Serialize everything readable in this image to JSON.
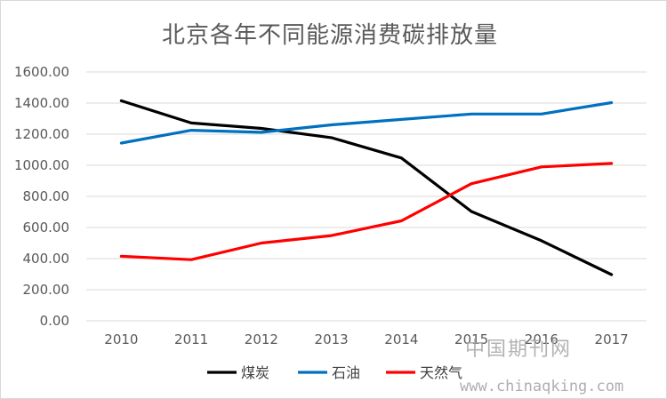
{
  "chart_data": {
    "type": "line",
    "title": "北京各年不同能源消费碳排放量",
    "xlabel": "",
    "ylabel": "",
    "categories": [
      "2010",
      "2011",
      "2012",
      "2013",
      "2014",
      "2015",
      "2016",
      "2017"
    ],
    "ylim": [
      0,
      1600
    ],
    "yticks": [
      "0.00",
      "200.00",
      "400.00",
      "600.00",
      "800.00",
      "1000.00",
      "1200.00",
      "1400.00",
      "1600.00"
    ],
    "grid": true,
    "legend_position": "bottom",
    "series": [
      {
        "name": "煤炭",
        "color": "#000000",
        "values": [
          1415,
          1272,
          1237,
          1178,
          1047,
          703,
          515,
          297
        ]
      },
      {
        "name": "石油",
        "color": "#0070c0",
        "values": [
          1143,
          1225,
          1212,
          1260,
          1295,
          1330,
          1330,
          1403
        ]
      },
      {
        "name": "天然气",
        "color": "#ff0000",
        "values": [
          415,
          393,
          500,
          548,
          643,
          882,
          990,
          1012
        ]
      }
    ]
  },
  "watermark": {
    "cn": "中国期刊网",
    "url": "www.chinaqking.com"
  }
}
